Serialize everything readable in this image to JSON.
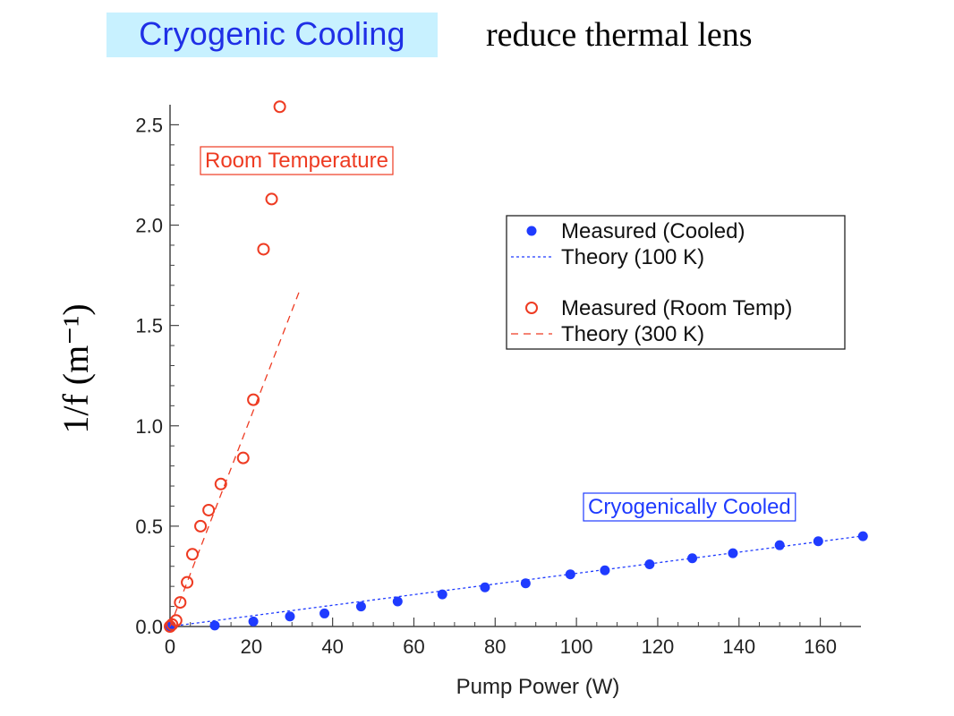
{
  "header": {
    "title": "Cryogenic Cooling",
    "subtitle": "reduce thermal lens"
  },
  "colors": {
    "title_bg": "#c8f1ff",
    "title_text": "#1f2fe6",
    "cooled": "#1f3bff",
    "room": "#ee3b22",
    "axis": "#444444"
  },
  "chart_data": {
    "type": "scatter",
    "xlabel": "Pump Power (W)",
    "ylabel": "1/f (m⁻¹)",
    "xlim": [
      0,
      170
    ],
    "ylim": [
      0,
      2.6
    ],
    "xticks": [
      "0",
      "20",
      "40",
      "60",
      "80",
      "100",
      "120",
      "140",
      "160"
    ],
    "yticks": [
      "0.0",
      "0.5",
      "1.0",
      "1.5",
      "2.0",
      "2.5"
    ],
    "grid": false,
    "legend_placement": "top-right",
    "annotations": [
      "Room Temperature",
      "Cryogenically Cooled"
    ],
    "series": [
      {
        "name": "Measured (Cooled)",
        "kind": "marker-filled",
        "color": "#1f3bff",
        "x": [
          0,
          11,
          20.5,
          29.5,
          38,
          47,
          56,
          67,
          77.5,
          87.5,
          98.5,
          107,
          118,
          128.5,
          138.5,
          150,
          159.5,
          170.5
        ],
        "y": [
          0,
          0.005,
          0.025,
          0.05,
          0.065,
          0.1,
          0.125,
          0.16,
          0.195,
          0.215,
          0.26,
          0.28,
          0.31,
          0.34,
          0.365,
          0.405,
          0.425,
          0.45
        ]
      },
      {
        "name": "Theory (100 K)",
        "kind": "line-dotted",
        "color": "#1f3bff",
        "x": [
          0,
          170
        ],
        "y": [
          0,
          0.45
        ]
      },
      {
        "name": "Measured (Room Temp)",
        "kind": "marker-open",
        "color": "#ee3b22",
        "x": [
          0,
          0.5,
          1.5,
          2.5,
          4.2,
          5.5,
          7.5,
          9.5,
          12.5,
          18,
          20.5,
          23,
          25,
          27
        ],
        "y": [
          0,
          0.01,
          0.03,
          0.12,
          0.22,
          0.36,
          0.5,
          0.58,
          0.71,
          0.84,
          1.13,
          1.88,
          2.13,
          2.59
        ]
      },
      {
        "name": "Theory (300 K)",
        "kind": "line-dashed",
        "color": "#ee3b22",
        "x": [
          0,
          32
        ],
        "y": [
          0,
          1.68
        ]
      }
    ]
  }
}
